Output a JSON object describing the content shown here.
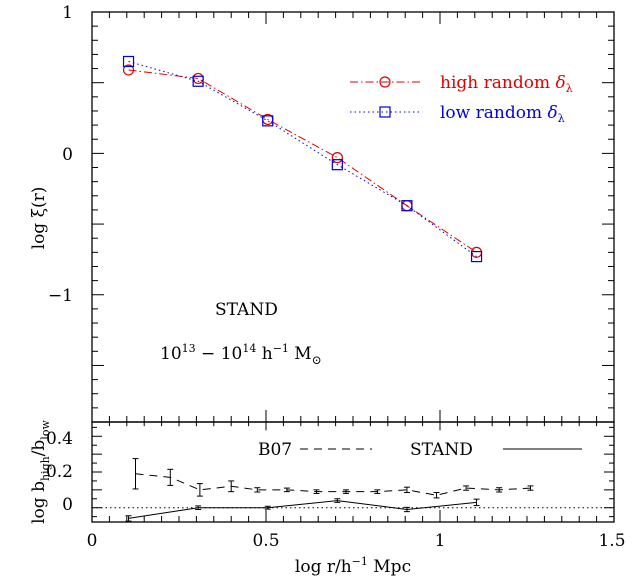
{
  "chart_data": [
    {
      "type": "line",
      "panel": "top",
      "xlim": [
        0,
        1.5
      ],
      "ylim": [
        -1.9,
        1.0
      ],
      "ylabel": "log ξ(r)",
      "yticks": [
        1,
        0,
        -1
      ],
      "ytick_labels": [
        "1",
        "0",
        "−1"
      ],
      "annotations": [
        "STAND",
        "10",
        "13",
        " − 10",
        "14",
        " h",
        "−1",
        " M",
        "⊙"
      ],
      "legend_position": "top-right",
      "series": [
        {
          "name": "high random δλ",
          "name_main": "high random ",
          "name_symbol": "δ",
          "name_sub": "λ",
          "color": "#e00000",
          "marker": "circle",
          "linestyle": "dashdot",
          "x": [
            0.105,
            0.305,
            0.505,
            0.705,
            0.905,
            1.105
          ],
          "y": [
            0.59,
            0.53,
            0.24,
            -0.03,
            -0.37,
            -0.7
          ]
        },
        {
          "name": "low random δλ",
          "name_main": "low random ",
          "name_symbol": "δ",
          "name_sub": "λ",
          "color": "#0000e0",
          "marker": "square",
          "linestyle": "dotted",
          "x": [
            0.105,
            0.305,
            0.505,
            0.705,
            0.905,
            1.105
          ],
          "y": [
            0.65,
            0.51,
            0.23,
            -0.08,
            -0.37,
            -0.73
          ]
        }
      ]
    },
    {
      "type": "line",
      "panel": "bottom",
      "xlim": [
        0,
        1.5
      ],
      "ylim": [
        -0.08,
        0.48
      ],
      "xlabel": "log r/h",
      "xlabel_sup": "−1",
      "xlabel_tail": " Mpc",
      "ylabel": "log b",
      "ylabel_sub1": "high",
      "ylabel_mid": "/b",
      "ylabel_sub2": "low",
      "xticks": [
        0,
        0.5,
        1,
        1.5
      ],
      "xtick_labels": [
        "0",
        "0.5",
        "1",
        "1.5"
      ],
      "yticks": [
        0,
        0.2,
        0.4
      ],
      "ytick_labels": [
        "0",
        "0.2",
        "0.4"
      ],
      "reference_line_y": 0,
      "series": [
        {
          "name": "B07",
          "color": "#000000",
          "linestyle": "dashed",
          "x": [
            0.125,
            0.225,
            0.31,
            0.4,
            0.475,
            0.56,
            0.645,
            0.73,
            0.82,
            0.905,
            0.99,
            1.075,
            1.17,
            1.26
          ],
          "y": [
            0.19,
            0.17,
            0.1,
            0.12,
            0.1,
            0.1,
            0.09,
            0.09,
            0.09,
            0.1,
            0.07,
            0.11,
            0.1,
            0.11
          ],
          "err": [
            0.085,
            0.045,
            0.035,
            0.03,
            0.012,
            0.01,
            0.01,
            0.01,
            0.01,
            0.015,
            0.015,
            0.012,
            0.012,
            0.012
          ]
        },
        {
          "name": "STAND",
          "color": "#000000",
          "linestyle": "solid",
          "x": [
            0.105,
            0.305,
            0.505,
            0.705,
            0.905,
            1.105
          ],
          "y": [
            -0.06,
            0.0,
            0.0,
            0.04,
            -0.01,
            0.03
          ],
          "err": [
            0.015,
            0.01,
            0.008,
            0.01,
            0.012,
            0.018
          ]
        }
      ]
    }
  ]
}
